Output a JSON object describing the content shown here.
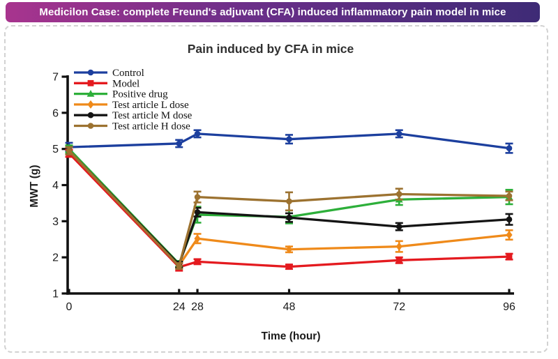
{
  "banner": {
    "text": "Medicilon Case: complete Freund's adjuvant (CFA) induced inflammatory pain model in mice",
    "gradient_left": "#a8348e",
    "gradient_mid": "#6b2f89",
    "gradient_right": "#3e2b76",
    "text_color": "#ffffff"
  },
  "chart_data": {
    "type": "line",
    "title": "Pain induced by CFA in mice",
    "xlabel": "Time (hour)",
    "ylabel": "MWT (g)",
    "x": [
      0,
      24,
      28,
      48,
      72,
      96
    ],
    "x_tick_labels": [
      "0",
      "24",
      "28",
      "48",
      "72",
      "96"
    ],
    "y_ticks": [
      1,
      2,
      3,
      4,
      5,
      6,
      7
    ],
    "ylim": [
      1,
      7
    ],
    "xlim": [
      0,
      96
    ],
    "grid": false,
    "error_bars": true,
    "legend_position": "top-left-inside",
    "axis_color": "#111111",
    "title_color": "#303030",
    "series": [
      {
        "name": "Control",
        "color": "#1c3f9e",
        "marker": "circle",
        "values": [
          5.05,
          5.15,
          5.42,
          5.27,
          5.42,
          5.02
        ],
        "errors": [
          0.12,
          0.1,
          0.1,
          0.12,
          0.1,
          0.13
        ]
      },
      {
        "name": "Model",
        "color": "#e41a1f",
        "marker": "square",
        "values": [
          4.88,
          1.73,
          1.88,
          1.74,
          1.92,
          2.02
        ],
        "errors": [
          0.1,
          0.1,
          0.07,
          0.06,
          0.08,
          0.08
        ]
      },
      {
        "name": "Positive drug",
        "color": "#2daf3a",
        "marker": "triangle",
        "values": [
          5.0,
          1.82,
          3.18,
          3.12,
          3.6,
          3.67
        ],
        "errors": [
          0.1,
          0.08,
          0.22,
          0.18,
          0.15,
          0.2
        ]
      },
      {
        "name": "Test article L dose",
        "color": "#ef8a1a",
        "marker": "diamond",
        "values": [
          4.95,
          1.78,
          2.52,
          2.22,
          2.3,
          2.62
        ],
        "errors": [
          0.1,
          0.08,
          0.13,
          0.08,
          0.15,
          0.13
        ]
      },
      {
        "name": "Test article M dose",
        "color": "#141414",
        "marker": "circle",
        "values": [
          4.95,
          1.8,
          3.25,
          3.1,
          2.85,
          3.05
        ],
        "errors": [
          0.1,
          0.08,
          0.12,
          0.12,
          0.1,
          0.15
        ]
      },
      {
        "name": "Test article H dose",
        "color": "#9c7230",
        "marker": "circle",
        "values": [
          4.95,
          1.76,
          3.67,
          3.55,
          3.75,
          3.7
        ],
        "errors": [
          0.1,
          0.08,
          0.15,
          0.25,
          0.15,
          0.12
        ]
      }
    ]
  }
}
